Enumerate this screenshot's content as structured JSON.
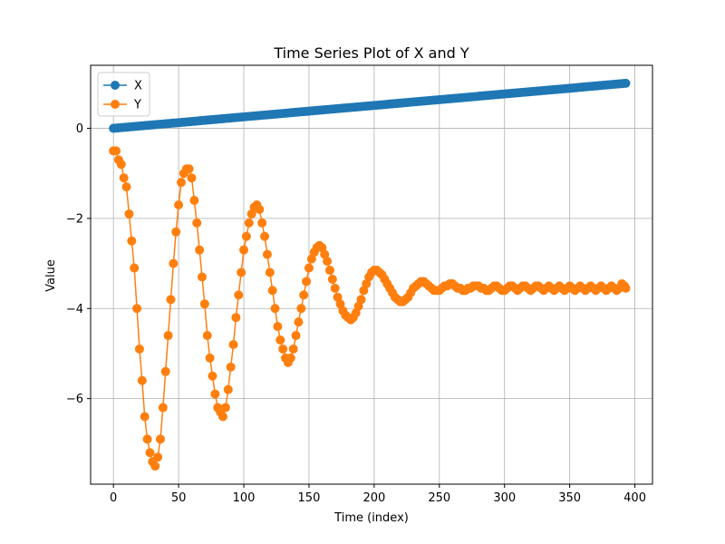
{
  "chart_data": {
    "type": "line",
    "title": "Time Series Plot of X and Y",
    "xlabel": "Time (index)",
    "ylabel": "Value",
    "xlim": [
      -17.5,
      413.5
    ],
    "ylim": [
      -7.9,
      1.4
    ],
    "xticks": [
      0,
      50,
      100,
      150,
      200,
      250,
      300,
      350,
      400
    ],
    "yticks": [
      0,
      -2,
      -4,
      -6
    ],
    "ytick_labels": [
      "0",
      "−2",
      "−4",
      "−6"
    ],
    "grid": true,
    "legend_position": "top-left",
    "marker": "circle",
    "series": [
      {
        "name": "X",
        "color": "#1f77b4",
        "x_start": 0,
        "x_end": 393,
        "y_start": 0.0,
        "y_end": 1.0,
        "trend": "linear"
      },
      {
        "name": "Y",
        "color": "#ff7f0e",
        "points": [
          [
            0,
            -0.5
          ],
          [
            2,
            -0.5
          ],
          [
            4,
            -0.7
          ],
          [
            6,
            -0.8
          ],
          [
            8,
            -1.1
          ],
          [
            10,
            -1.3
          ],
          [
            12,
            -1.9
          ],
          [
            14,
            -2.5
          ],
          [
            16,
            -3.1
          ],
          [
            18,
            -4.0
          ],
          [
            20,
            -4.9
          ],
          [
            22,
            -5.6
          ],
          [
            24,
            -6.4
          ],
          [
            26,
            -6.9
          ],
          [
            28,
            -7.2
          ],
          [
            30,
            -7.4
          ],
          [
            32,
            -7.5
          ],
          [
            34,
            -7.3
          ],
          [
            36,
            -6.9
          ],
          [
            38,
            -6.2
          ],
          [
            40,
            -5.4
          ],
          [
            42,
            -4.6
          ],
          [
            44,
            -3.8
          ],
          [
            46,
            -3.0
          ],
          [
            48,
            -2.3
          ],
          [
            50,
            -1.7
          ],
          [
            52,
            -1.2
          ],
          [
            54,
            -1.0
          ],
          [
            56,
            -0.9
          ],
          [
            58,
            -0.9
          ],
          [
            60,
            -1.1
          ],
          [
            62,
            -1.6
          ],
          [
            64,
            -2.1
          ],
          [
            66,
            -2.7
          ],
          [
            68,
            -3.3
          ],
          [
            70,
            -3.9
          ],
          [
            72,
            -4.6
          ],
          [
            74,
            -5.1
          ],
          [
            76,
            -5.5
          ],
          [
            78,
            -5.9
          ],
          [
            80,
            -6.2
          ],
          [
            82,
            -6.3
          ],
          [
            84,
            -6.4
          ],
          [
            86,
            -6.2
          ],
          [
            88,
            -5.8
          ],
          [
            90,
            -5.3
          ],
          [
            92,
            -4.8
          ],
          [
            94,
            -4.2
          ],
          [
            96,
            -3.7
          ],
          [
            98,
            -3.2
          ],
          [
            100,
            -2.7
          ],
          [
            102,
            -2.4
          ],
          [
            104,
            -2.1
          ],
          [
            106,
            -1.9
          ],
          [
            108,
            -1.75
          ],
          [
            110,
            -1.7
          ],
          [
            112,
            -1.8
          ],
          [
            114,
            -2.1
          ],
          [
            116,
            -2.4
          ],
          [
            118,
            -2.8
          ],
          [
            120,
            -3.2
          ],
          [
            122,
            -3.6
          ],
          [
            124,
            -4.0
          ],
          [
            126,
            -4.4
          ],
          [
            128,
            -4.7
          ],
          [
            130,
            -4.9
          ],
          [
            132,
            -5.1
          ],
          [
            134,
            -5.2
          ],
          [
            136,
            -5.1
          ],
          [
            138,
            -4.9
          ],
          [
            140,
            -4.6
          ],
          [
            142,
            -4.3
          ],
          [
            144,
            -4.0
          ],
          [
            146,
            -3.7
          ],
          [
            148,
            -3.4
          ],
          [
            150,
            -3.1
          ],
          [
            152,
            -2.9
          ],
          [
            154,
            -2.75
          ],
          [
            156,
            -2.65
          ],
          [
            158,
            -2.6
          ],
          [
            160,
            -2.65
          ],
          [
            162,
            -2.8
          ],
          [
            164,
            -2.95
          ],
          [
            166,
            -3.15
          ],
          [
            168,
            -3.35
          ],
          [
            170,
            -3.55
          ],
          [
            172,
            -3.75
          ],
          [
            174,
            -3.9
          ],
          [
            176,
            -4.05
          ],
          [
            178,
            -4.15
          ],
          [
            180,
            -4.2
          ],
          [
            182,
            -4.25
          ],
          [
            184,
            -4.2
          ],
          [
            186,
            -4.1
          ],
          [
            188,
            -3.95
          ],
          [
            190,
            -3.8
          ],
          [
            192,
            -3.6
          ],
          [
            194,
            -3.45
          ],
          [
            196,
            -3.3
          ],
          [
            198,
            -3.2
          ],
          [
            200,
            -3.15
          ],
          [
            202,
            -3.15
          ],
          [
            204,
            -3.2
          ],
          [
            206,
            -3.25
          ],
          [
            208,
            -3.35
          ],
          [
            210,
            -3.45
          ],
          [
            212,
            -3.55
          ],
          [
            214,
            -3.65
          ],
          [
            216,
            -3.75
          ],
          [
            218,
            -3.8
          ],
          [
            220,
            -3.85
          ],
          [
            222,
            -3.85
          ],
          [
            224,
            -3.8
          ],
          [
            226,
            -3.75
          ],
          [
            228,
            -3.65
          ],
          [
            230,
            -3.55
          ],
          [
            232,
            -3.5
          ],
          [
            234,
            -3.45
          ],
          [
            236,
            -3.4
          ],
          [
            238,
            -3.4
          ],
          [
            240,
            -3.45
          ],
          [
            242,
            -3.5
          ],
          [
            244,
            -3.55
          ],
          [
            246,
            -3.6
          ],
          [
            248,
            -3.6
          ],
          [
            250,
            -3.6
          ],
          [
            252,
            -3.55
          ],
          [
            254,
            -3.5
          ],
          [
            256,
            -3.5
          ],
          [
            258,
            -3.45
          ],
          [
            260,
            -3.45
          ],
          [
            262,
            -3.5
          ],
          [
            264,
            -3.55
          ],
          [
            266,
            -3.55
          ],
          [
            268,
            -3.6
          ],
          [
            270,
            -3.6
          ],
          [
            272,
            -3.55
          ],
          [
            274,
            -3.55
          ],
          [
            276,
            -3.5
          ],
          [
            278,
            -3.5
          ],
          [
            280,
            -3.5
          ],
          [
            282,
            -3.55
          ],
          [
            284,
            -3.55
          ],
          [
            286,
            -3.6
          ],
          [
            288,
            -3.6
          ],
          [
            290,
            -3.55
          ],
          [
            292,
            -3.5
          ],
          [
            294,
            -3.5
          ],
          [
            296,
            -3.55
          ],
          [
            298,
            -3.6
          ],
          [
            300,
            -3.6
          ],
          [
            302,
            -3.55
          ],
          [
            304,
            -3.5
          ],
          [
            306,
            -3.5
          ],
          [
            308,
            -3.55
          ],
          [
            310,
            -3.6
          ],
          [
            312,
            -3.55
          ],
          [
            314,
            -3.5
          ],
          [
            316,
            -3.5
          ],
          [
            318,
            -3.55
          ],
          [
            320,
            -3.6
          ],
          [
            322,
            -3.55
          ],
          [
            324,
            -3.5
          ],
          [
            326,
            -3.5
          ],
          [
            328,
            -3.55
          ],
          [
            330,
            -3.6
          ],
          [
            332,
            -3.55
          ],
          [
            334,
            -3.5
          ],
          [
            336,
            -3.55
          ],
          [
            338,
            -3.6
          ],
          [
            340,
            -3.55
          ],
          [
            342,
            -3.5
          ],
          [
            344,
            -3.55
          ],
          [
            346,
            -3.6
          ],
          [
            348,
            -3.55
          ],
          [
            350,
            -3.5
          ],
          [
            352,
            -3.55
          ],
          [
            354,
            -3.6
          ],
          [
            356,
            -3.55
          ],
          [
            358,
            -3.5
          ],
          [
            360,
            -3.55
          ],
          [
            362,
            -3.6
          ],
          [
            364,
            -3.55
          ],
          [
            366,
            -3.5
          ],
          [
            368,
            -3.55
          ],
          [
            370,
            -3.6
          ],
          [
            372,
            -3.55
          ],
          [
            374,
            -3.5
          ],
          [
            376,
            -3.55
          ],
          [
            378,
            -3.6
          ],
          [
            380,
            -3.55
          ],
          [
            382,
            -3.5
          ],
          [
            384,
            -3.55
          ],
          [
            386,
            -3.6
          ],
          [
            388,
            -3.55
          ],
          [
            390,
            -3.45
          ],
          [
            392,
            -3.5
          ],
          [
            393,
            -3.55
          ]
        ]
      }
    ]
  }
}
